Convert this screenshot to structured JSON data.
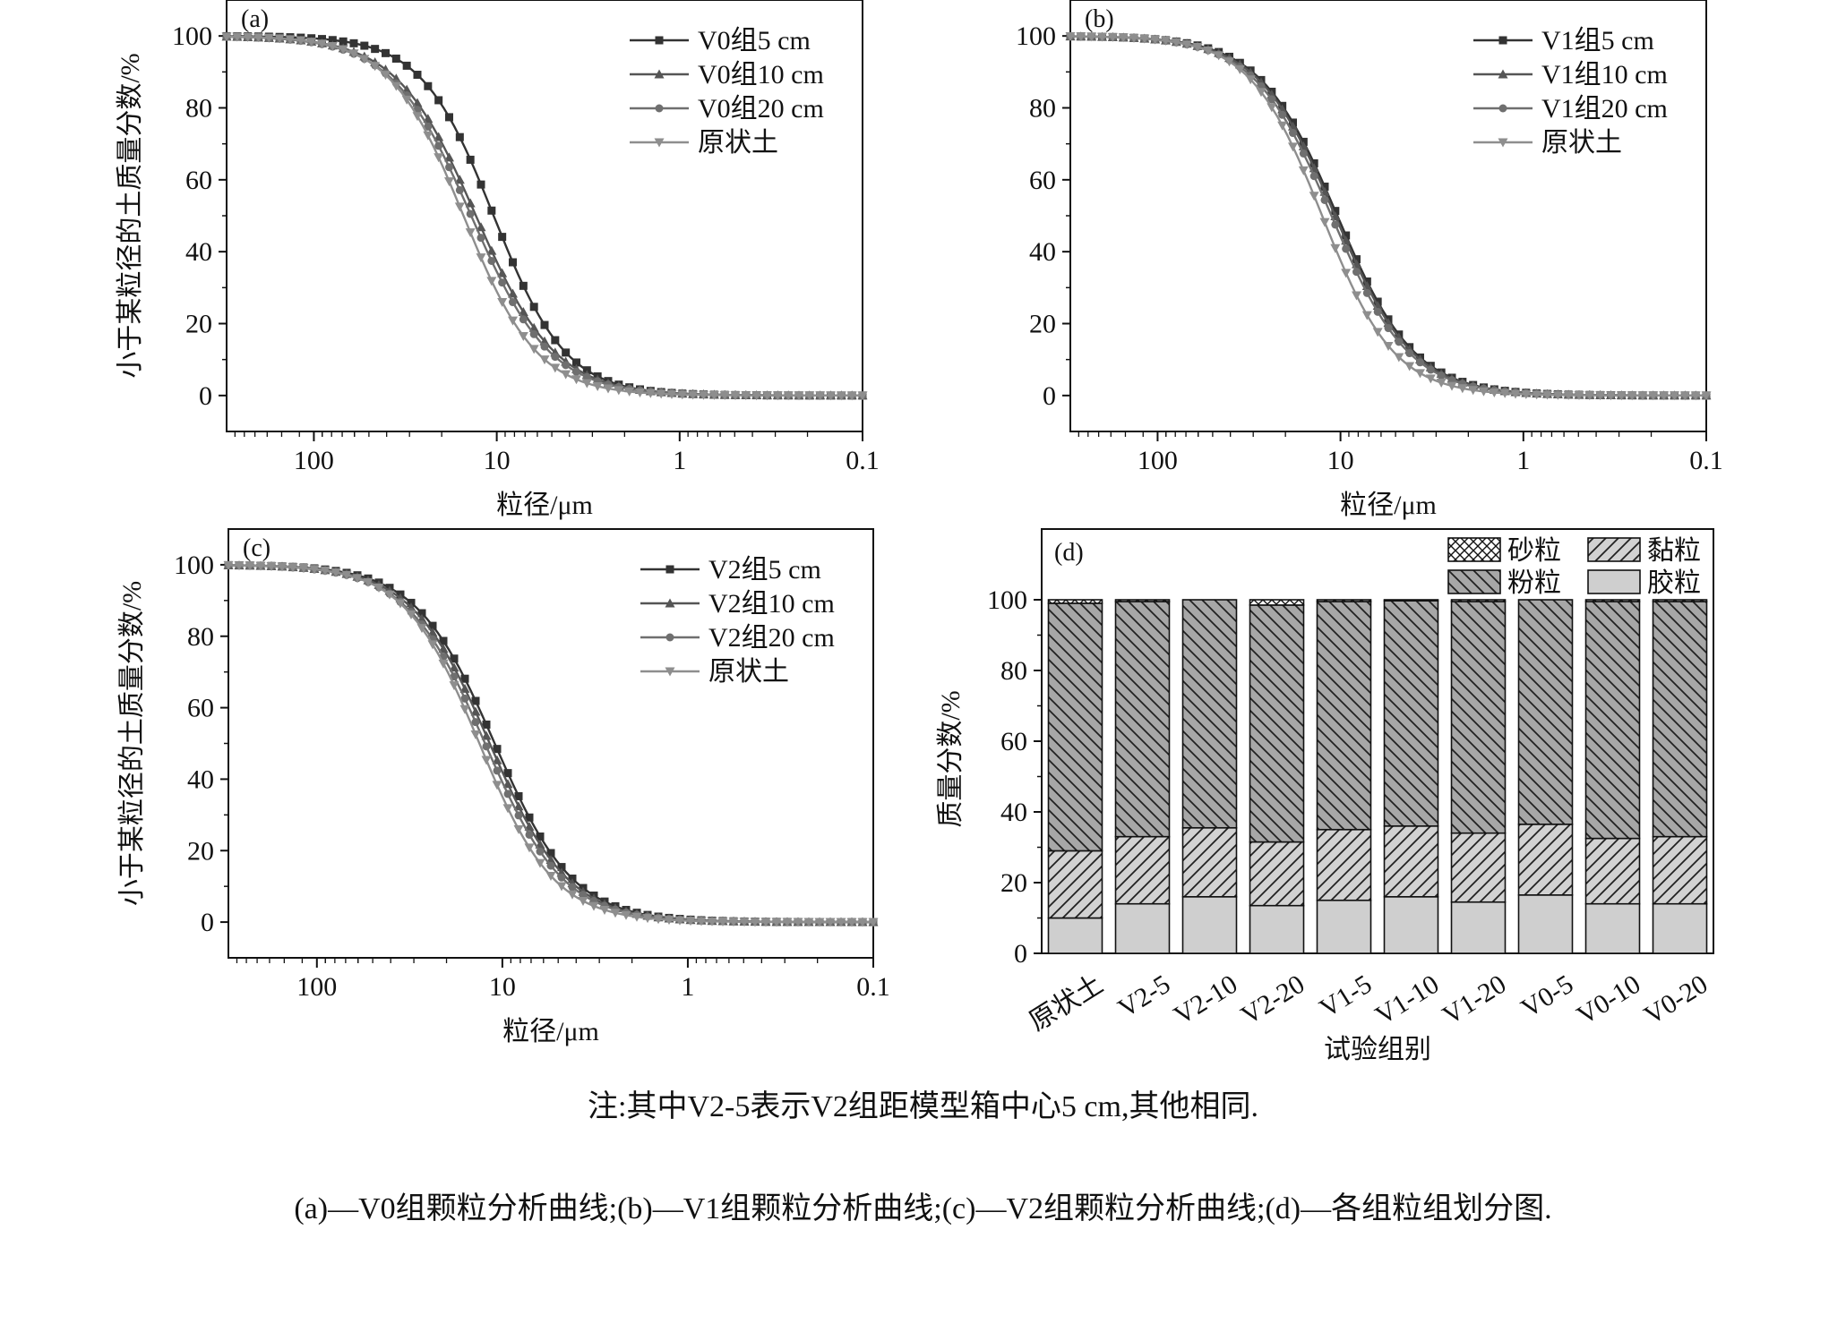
{
  "note": "注:其中V2-5表示V2组距模型箱中心5 cm,其他相同.",
  "caption": "(a)—V0组颗粒分析曲线;(b)—V1组颗粒分析曲线;(c)—V2组颗粒分析曲线;(d)—各组粒组划分图.",
  "colors": {
    "series": [
      "#333333",
      "#555555",
      "#6f6f6f",
      "#8e8e8e"
    ],
    "fill_clay": "#cfcfcf",
    "fill_silt": "#a7a7a7",
    "fill_powder": "#d2d2d2"
  },
  "chart_data": [
    {
      "panel": "(a)",
      "type": "line",
      "xlabel": "粒径/μm",
      "ylabel": "小于某粒径的土质量分数/%",
      "xscale": "log",
      "xreversed": true,
      "xlim": [
        300,
        0.1
      ],
      "ylim": [
        -10,
        110
      ],
      "xticks": [
        "100",
        "10",
        "1",
        "0.1"
      ],
      "yticks": [
        "0",
        "20",
        "40",
        "60",
        "80",
        "100"
      ],
      "legend_position": "top-right",
      "series": [
        {
          "name": "V0组5 cm",
          "marker": "square",
          "d50": 10.4,
          "slope": 2.2
        },
        {
          "name": "V0组10 cm",
          "marker": "triangle-up",
          "d50": 13.0,
          "slope": 2.0
        },
        {
          "name": "V0组20 cm",
          "marker": "circle",
          "d50": 13.8,
          "slope": 2.0
        },
        {
          "name": "原状土",
          "marker": "triangle-down",
          "d50": 15.2,
          "slope": 2.15
        }
      ]
    },
    {
      "panel": "(b)",
      "type": "line",
      "xlabel": "粒径/μm",
      "ylabel": "",
      "xscale": "log",
      "xreversed": true,
      "xlim": [
        300,
        0.1
      ],
      "ylim": [
        -10,
        110
      ],
      "xticks": [
        "100",
        "10",
        "1",
        "0.1"
      ],
      "yticks": [
        "0",
        "20",
        "40",
        "60",
        "80",
        "100"
      ],
      "legend_position": "top-right",
      "series": [
        {
          "name": "V1组5 cm",
          "marker": "square",
          "d50": 10.4,
          "slope": 2.05
        },
        {
          "name": "V1组10 cm",
          "marker": "triangle-up",
          "d50": 10.7,
          "slope": 2.05
        },
        {
          "name": "V1组20 cm",
          "marker": "circle",
          "d50": 11.2,
          "slope": 2.05
        },
        {
          "name": "原状土",
          "marker": "triangle-down",
          "d50": 12.6,
          "slope": 2.2
        }
      ]
    },
    {
      "panel": "(c)",
      "type": "line",
      "xlabel": "粒径/μm",
      "ylabel": "小于某粒径的土质量分数/%",
      "xscale": "log",
      "xreversed": true,
      "xlim": [
        300,
        0.1
      ],
      "ylim": [
        -10,
        110
      ],
      "xticks": [
        "100",
        "10",
        "1",
        "0.1"
      ],
      "yticks": [
        "0",
        "20",
        "40",
        "60",
        "80",
        "100"
      ],
      "legend_position": "top-right",
      "series": [
        {
          "name": "V2组5 cm",
          "marker": "square",
          "d50": 11.0,
          "slope": 2.05
        },
        {
          "name": "V2组10 cm",
          "marker": "triangle-up",
          "d50": 11.7,
          "slope": 2.05
        },
        {
          "name": "V2组20 cm",
          "marker": "circle",
          "d50": 12.4,
          "slope": 2.05
        },
        {
          "name": "原状土",
          "marker": "triangle-down",
          "d50": 13.3,
          "slope": 2.15
        }
      ]
    },
    {
      "panel": "(d)",
      "type": "bar",
      "stacked": true,
      "xlabel": "试验组别",
      "ylabel": "质量分数/%",
      "ylim": [
        0,
        120
      ],
      "yticks": [
        "0",
        "20",
        "40",
        "60",
        "80",
        "100"
      ],
      "legend_position": "top",
      "categories": [
        "原状土",
        "V2-5",
        "V2-10",
        "V2-20",
        "V1-5",
        "V1-10",
        "V1-20",
        "V0-5",
        "V0-10",
        "V0-20"
      ],
      "series": [
        {
          "name": "胶粒",
          "pattern": "solid-light",
          "values": [
            10,
            14,
            16,
            13.5,
            15,
            16,
            14.5,
            16.5,
            14,
            14
          ]
        },
        {
          "name": "黏粒",
          "pattern": "hatch-diagonal",
          "values": [
            19,
            19,
            19.5,
            18,
            20,
            20,
            19.5,
            20,
            18.5,
            19
          ]
        },
        {
          "name": "粉粒",
          "pattern": "hatch-dark",
          "values": [
            70,
            66.5,
            64.5,
            67,
            64.5,
            63.7,
            65.5,
            63.5,
            67,
            66.5
          ]
        },
        {
          "name": "砂粒",
          "pattern": "crosshatch",
          "values": [
            1,
            0.5,
            0,
            1.5,
            0.5,
            0.3,
            0.5,
            0,
            0.5,
            0.5
          ]
        }
      ],
      "legend_order": [
        "砂粒",
        "黏粒",
        "粉粒",
        "胶粒"
      ]
    }
  ]
}
